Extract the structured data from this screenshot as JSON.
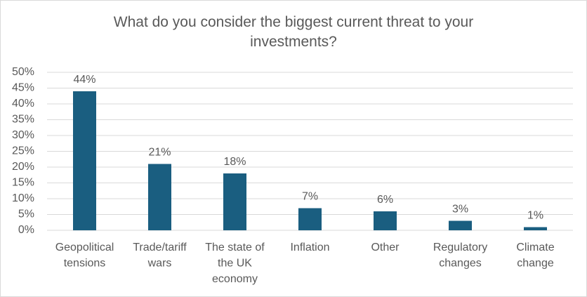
{
  "chart_data": {
    "type": "bar",
    "title": "What do you consider the biggest current threat to your investments?",
    "categories": [
      "Geopolitical tensions",
      "Trade/tariff wars",
      "The state of the UK economy",
      "Inflation",
      "Other",
      "Regulatory changes",
      "Climate change"
    ],
    "values": [
      44,
      21,
      18,
      7,
      6,
      3,
      1
    ],
    "value_labels": [
      "44%",
      "21%",
      "18%",
      "7%",
      "6%",
      "3%",
      "1%"
    ],
    "color": "#1a5e80",
    "ylim": [
      0,
      50
    ],
    "yticks": [
      {
        "value": 0,
        "label": "0%"
      },
      {
        "value": 5,
        "label": "5%"
      },
      {
        "value": 10,
        "label": "10%"
      },
      {
        "value": 15,
        "label": "15%"
      },
      {
        "value": 20,
        "label": "20%"
      },
      {
        "value": 25,
        "label": "25%"
      },
      {
        "value": 30,
        "label": "30%"
      },
      {
        "value": 35,
        "label": "35%"
      },
      {
        "value": 40,
        "label": "40%"
      },
      {
        "value": 45,
        "label": "45%"
      },
      {
        "value": 50,
        "label": "50%"
      }
    ],
    "grid": true
  }
}
